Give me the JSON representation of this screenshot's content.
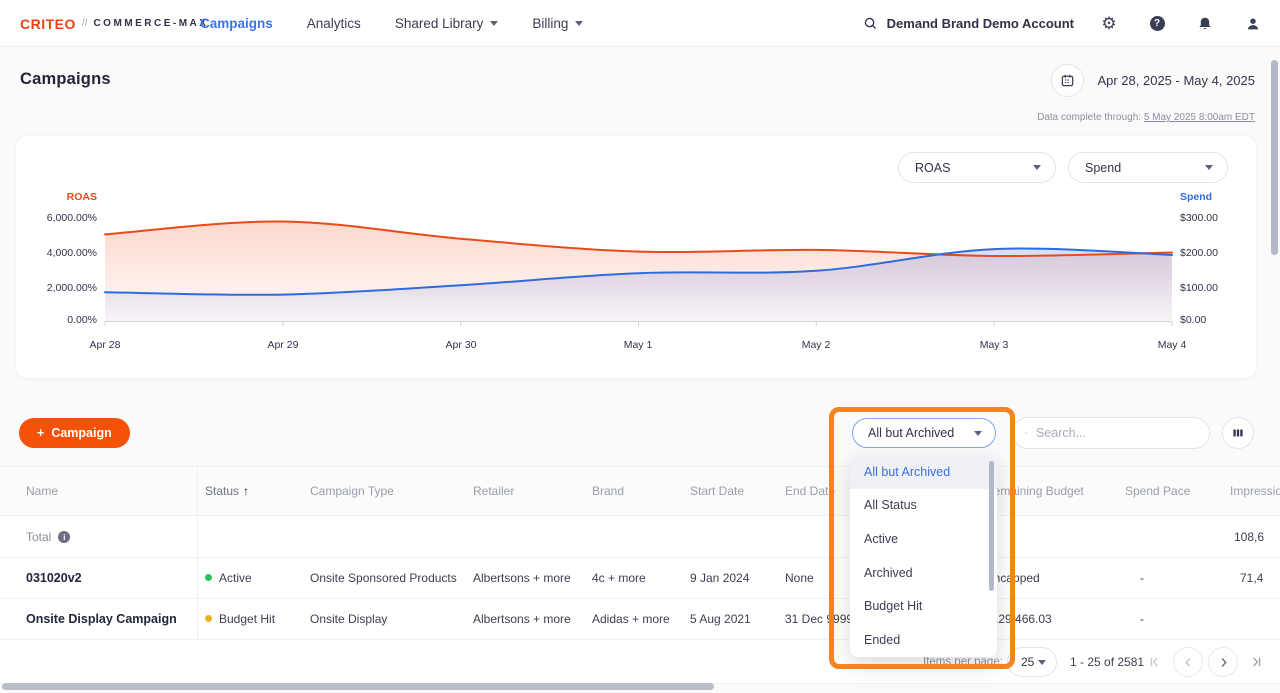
{
  "nav": {
    "logo_primary": "CRITEO",
    "logo_separator": "//",
    "logo_secondary": "COMMERCE-MAX",
    "items": [
      {
        "label": "Campaigns"
      },
      {
        "label": "Analytics"
      },
      {
        "label": "Shared Library"
      },
      {
        "label": "Billing"
      }
    ],
    "account": "Demand Brand Demo Account"
  },
  "page": {
    "title": "Campaigns",
    "date_range": "Apr 28, 2025 - May 4, 2025",
    "data_complete_prefix": "Data complete through:",
    "data_complete_link": "5 May 2025 8:00am EDT"
  },
  "chart": {
    "left_select": "ROAS",
    "right_select": "Spend",
    "left_axis_title": "ROAS",
    "right_axis_title": "Spend",
    "left_ticks": [
      "6,000.00%",
      "4,000.00%",
      "2,000.00%",
      "0.00%"
    ],
    "right_ticks": [
      "$300.00",
      "$200.00",
      "$100.00",
      "$0.00"
    ],
    "x_ticks": [
      "Apr 28",
      "Apr 29",
      "Apr 30",
      "May 1",
      "May 2",
      "May 3",
      "May 4"
    ]
  },
  "chart_data": {
    "type": "area",
    "x": [
      "Apr 28",
      "Apr 29",
      "Apr 30",
      "May 1",
      "May 2",
      "May 3",
      "May 4"
    ],
    "series": [
      {
        "name": "ROAS",
        "axis": "left",
        "unit": "%",
        "color": "#e94a19",
        "values": [
          5050,
          5800,
          4800,
          4050,
          4150,
          3800,
          4000
        ]
      },
      {
        "name": "Spend",
        "axis": "right",
        "unit": "USD",
        "color": "#2f6bdf",
        "values": [
          85,
          78,
          105,
          140,
          147,
          210,
          193
        ]
      }
    ],
    "left_ylim": [
      0,
      6000
    ],
    "right_ylim": [
      0,
      300
    ],
    "grid": false,
    "legend_position": "axis-corners"
  },
  "toolbar": {
    "new_campaign_plus": "+",
    "new_campaign_label": "Campaign",
    "status_filter_value": "All but Archived",
    "search_placeholder": "Search..."
  },
  "status_menu": {
    "items": [
      "All but Archived",
      "All Status",
      "Active",
      "Archived",
      "Budget Hit",
      "Ended"
    ],
    "selected_index": 0
  },
  "table": {
    "columns": [
      "Name",
      "Status",
      "Campaign Type",
      "Retailer",
      "Brand",
      "Start Date",
      "End Date",
      "Remaining Budget",
      "Spend Pace",
      "Impressions"
    ],
    "sort_arrow": "↑",
    "total": {
      "name": "Total",
      "info_glyph": "i",
      "impressions": "108,6"
    },
    "rows": [
      {
        "name": "031020v2",
        "status": "Active",
        "type": "Onsite Sponsored Products",
        "retailer": "Albertsons + more",
        "brand": "4c + more",
        "start_date": "9 Jan 2024",
        "end_date": "None",
        "remaining_budget": "Uncapped",
        "spend_pace": "-",
        "impressions": "71,4"
      },
      {
        "name": "Onsite Display Campaign",
        "status": "Budget Hit",
        "type": "Onsite Display",
        "retailer": "Albertsons + more",
        "brand": "Adidas + more",
        "start_date": "5 Aug 2021",
        "end_date": "31 Dec 9999",
        "remaining_budget": "$129,466.03",
        "spend_pace": "-",
        "impressions": ""
      }
    ]
  },
  "pagination": {
    "items_per_page_label": "Items per page:",
    "page_size": "25",
    "range": "1 - 25 of 2581"
  },
  "colors": {
    "brand_orange": "#ee4213",
    "accent_blue": "#3575f0",
    "roas_red": "#e94a19",
    "spend_blue": "#2f6bdf",
    "campaign_button_orange": "#f55108",
    "active_dot_green": "#22c55e",
    "budget_hit_dot_amber": "#f2b01e",
    "annotation_orange": "#f5831f"
  }
}
